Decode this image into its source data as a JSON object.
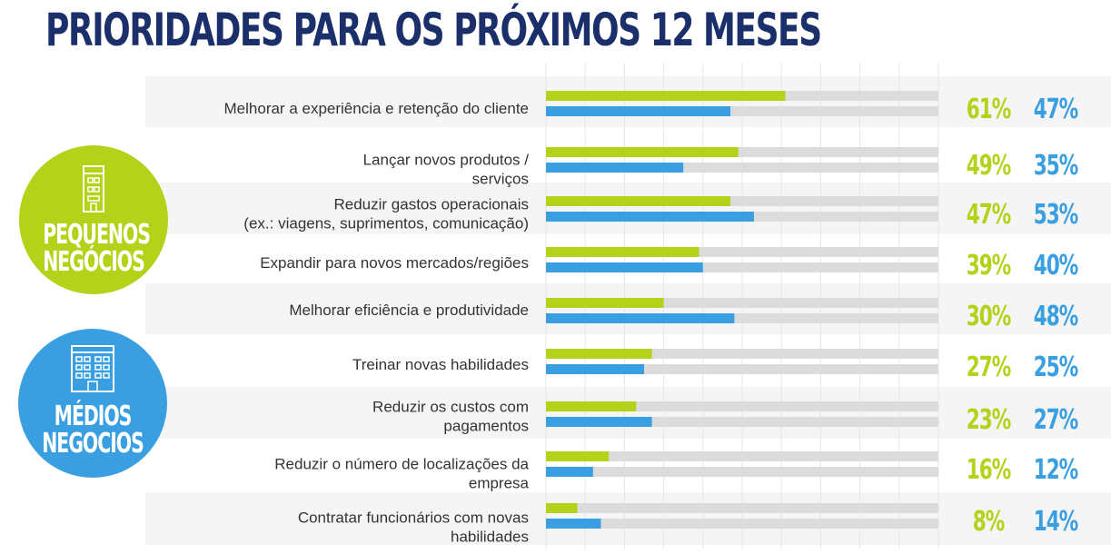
{
  "title": "PRIORIDADES PARA OS PRÓXIMOS 12 MESES",
  "legend": {
    "small": {
      "line1": "PEQUENOS",
      "line2": "NEGÓCIOS"
    },
    "medium": {
      "line1": "MÉDIOS",
      "line2": "NEGOCIOS"
    }
  },
  "colors": {
    "small": "#b4d21a",
    "medium": "#3a9fe0",
    "track": "#dcdcdc",
    "title": "#1b2f6b",
    "label": "#333333",
    "row_band": "#f5f5f5"
  },
  "icons": {
    "small": "building-icon",
    "medium": "office-building-icon"
  },
  "chart_data": {
    "type": "bar",
    "orientation": "horizontal",
    "title": "PRIORIDADES PARA OS PRÓXIMOS 12 MESES",
    "xlim": [
      0,
      100
    ],
    "grid": true,
    "categories": [
      [
        "Melhorar a experiência e retenção do cliente"
      ],
      [
        "Lançar novos produtos /",
        "serviços"
      ],
      [
        "Reduzir gastos operacionais",
        "(ex.: viagens, suprimentos, comunicação)"
      ],
      [
        "Expandir para novos mercados/regiões"
      ],
      [
        "Melhorar eficiência e produtividade"
      ],
      [
        "Treinar novas habilidades"
      ],
      [
        "Reduzir os custos com",
        "pagamentos"
      ],
      [
        "Reduzir o número de localizações da",
        "empresa"
      ],
      [
        "Contratar funcionários com novas",
        "habilidades"
      ]
    ],
    "series": [
      {
        "name": "PEQUENOS NEGÓCIOS",
        "color": "#b4d21a",
        "values": [
          61,
          49,
          47,
          39,
          30,
          27,
          23,
          16,
          8
        ]
      },
      {
        "name": "MÉDIOS NEGOCIOS",
        "color": "#3a9fe0",
        "values": [
          47,
          35,
          53,
          40,
          48,
          25,
          27,
          12,
          14
        ]
      }
    ]
  }
}
